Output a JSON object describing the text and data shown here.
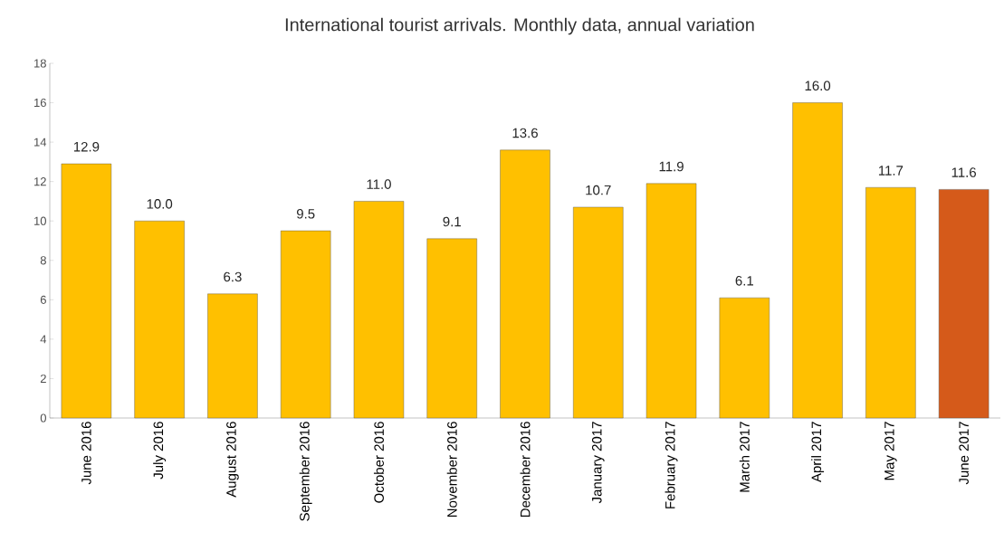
{
  "chart_data": {
    "type": "bar",
    "title": "International tourist arrivals. Monthly data, annual variation",
    "categories": [
      "June 2016",
      "July 2016",
      "August 2016",
      "September 2016",
      "October 2016",
      "November 2016",
      "December 2016",
      "January 2017",
      "February 2017",
      "March 2017",
      "April 2017",
      "May 2017",
      "June 2017"
    ],
    "values": [
      12.9,
      10.0,
      6.3,
      9.5,
      11.0,
      9.1,
      13.6,
      10.7,
      11.9,
      6.1,
      16.0,
      11.7,
      11.6
    ],
    "value_labels": [
      "12.9",
      "10.0",
      "6.3",
      "9.5",
      "11.0",
      "9.1",
      "13.6",
      "10.7",
      "11.9",
      "6.1",
      "16.0",
      "11.7",
      "11.6"
    ],
    "colors": [
      "#ffc000",
      "#ffc000",
      "#ffc000",
      "#ffc000",
      "#ffc000",
      "#ffc000",
      "#ffc000",
      "#ffc000",
      "#ffc000",
      "#ffc000",
      "#ffc000",
      "#ffc000",
      "#d55a1a"
    ],
    "ylim": [
      0,
      18
    ],
    "yticks": [
      0,
      2,
      4,
      6,
      8,
      10,
      12,
      14,
      16,
      18
    ]
  }
}
